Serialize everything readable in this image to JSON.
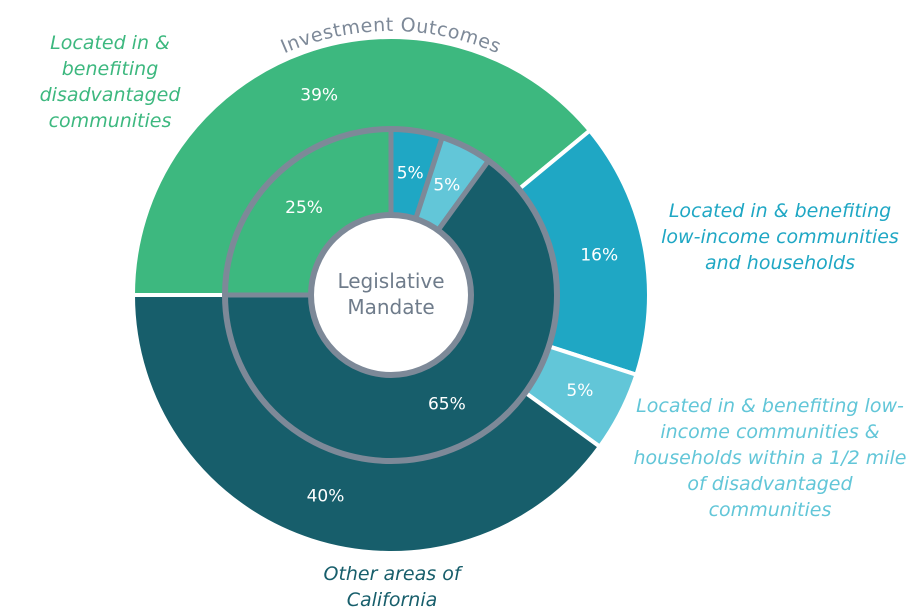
{
  "chart_data": [
    {
      "type": "donut",
      "title": "Investment Outcomes",
      "categories": [
        "Located in & benefiting disadvantaged communities",
        "Located in & benefiting low-income communities and households",
        "Located in & benefiting low-income communities & households within a 1/2 mile of disadvantaged communities",
        "Other areas of California"
      ],
      "values": [
        39,
        16,
        5,
        40
      ],
      "value_labels": [
        "39%",
        "16%",
        "5%",
        "40%"
      ],
      "colors": [
        "#3db87f",
        "#1fa7c4",
        "#62c6d8",
        "#175e6b"
      ]
    },
    {
      "type": "donut",
      "title": "Legislative Mandate",
      "values": [
        25,
        5,
        5,
        65
      ],
      "value_labels": [
        "25%",
        "5%",
        "5%",
        "65%"
      ],
      "colors": [
        "#3db87f",
        "#1fa7c4",
        "#62c6d8",
        "#175e6b"
      ]
    }
  ]
}
